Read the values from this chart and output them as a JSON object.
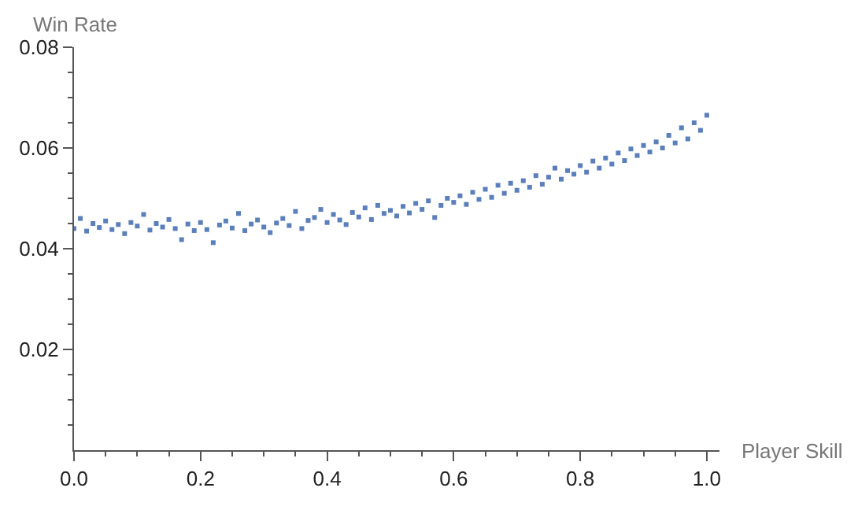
{
  "chart_data": {
    "type": "scatter",
    "xlabel": "Player Skill",
    "ylabel": "Win Rate",
    "marker": "square",
    "xlim": [
      0,
      1.02
    ],
    "ylim": [
      0,
      0.08
    ],
    "xticks": [
      {
        "value": 0,
        "label": "0.0"
      },
      {
        "value": 0.05,
        "label": null
      },
      {
        "value": 0.1,
        "label": null
      },
      {
        "value": 0.15,
        "label": null
      },
      {
        "value": 0.2,
        "label": "0.2"
      },
      {
        "value": 0.25,
        "label": null
      },
      {
        "value": 0.3,
        "label": null
      },
      {
        "value": 0.35,
        "label": null
      },
      {
        "value": 0.4,
        "label": "0.4"
      },
      {
        "value": 0.45,
        "label": null
      },
      {
        "value": 0.5,
        "label": null
      },
      {
        "value": 0.55,
        "label": null
      },
      {
        "value": 0.6,
        "label": "0.6"
      },
      {
        "value": 0.65,
        "label": null
      },
      {
        "value": 0.7,
        "label": null
      },
      {
        "value": 0.75,
        "label": null
      },
      {
        "value": 0.8,
        "label": "0.8"
      },
      {
        "value": 0.85,
        "label": null
      },
      {
        "value": 0.9,
        "label": null
      },
      {
        "value": 0.95,
        "label": null
      },
      {
        "value": 1.0,
        "label": "1.0"
      }
    ],
    "yticks": [
      {
        "value": 0.005,
        "label": null
      },
      {
        "value": 0.01,
        "label": null
      },
      {
        "value": 0.015,
        "label": null
      },
      0.02,
      {
        "value": 0.025,
        "label": null
      },
      {
        "value": 0.03,
        "label": null
      },
      {
        "value": 0.035,
        "label": null
      },
      0.04,
      {
        "value": 0.045,
        "label": null
      },
      {
        "value": 0.05,
        "label": null
      },
      {
        "value": 0.055,
        "label": null
      },
      0.06,
      {
        "value": 0.065,
        "label": null
      },
      {
        "value": 0.07,
        "label": null
      },
      {
        "value": 0.075,
        "label": null
      },
      0.08
    ],
    "x": [
      0.0,
      0.01,
      0.02,
      0.03,
      0.04,
      0.05,
      0.06,
      0.07,
      0.08,
      0.09,
      0.1,
      0.11,
      0.12,
      0.13,
      0.14,
      0.15,
      0.16,
      0.17,
      0.18,
      0.19,
      0.2,
      0.21,
      0.22,
      0.23,
      0.24,
      0.25,
      0.26,
      0.27,
      0.28,
      0.29,
      0.3,
      0.31,
      0.32,
      0.33,
      0.34,
      0.35,
      0.36,
      0.37,
      0.38,
      0.39,
      0.4,
      0.41,
      0.42,
      0.43,
      0.44,
      0.45,
      0.46,
      0.47,
      0.48,
      0.49,
      0.5,
      0.51,
      0.52,
      0.53,
      0.54,
      0.55,
      0.56,
      0.57,
      0.58,
      0.59,
      0.6,
      0.61,
      0.62,
      0.63,
      0.64,
      0.65,
      0.66,
      0.67,
      0.68,
      0.69,
      0.7,
      0.71,
      0.72,
      0.73,
      0.74,
      0.75,
      0.76,
      0.77,
      0.78,
      0.79,
      0.8,
      0.81,
      0.82,
      0.83,
      0.84,
      0.85,
      0.86,
      0.87,
      0.88,
      0.89,
      0.9,
      0.91,
      0.92,
      0.93,
      0.94,
      0.95,
      0.96,
      0.97,
      0.98,
      0.99,
      1.0
    ],
    "series": [
      {
        "color": "#5b7fba",
        "values": [
          0.044,
          0.046,
          0.0435,
          0.045,
          0.0442,
          0.0455,
          0.0438,
          0.0448,
          0.043,
          0.0452,
          0.0445,
          0.0468,
          0.0437,
          0.045,
          0.0443,
          0.0458,
          0.044,
          0.0418,
          0.0449,
          0.0436,
          0.0452,
          0.0438,
          0.0412,
          0.0447,
          0.0455,
          0.0441,
          0.047,
          0.0436,
          0.0449,
          0.0457,
          0.0443,
          0.0432,
          0.0451,
          0.046,
          0.0446,
          0.0474,
          0.044,
          0.0456,
          0.0462,
          0.0478,
          0.0452,
          0.0468,
          0.0457,
          0.0448,
          0.0472,
          0.0463,
          0.0481,
          0.0458,
          0.0486,
          0.047,
          0.0476,
          0.0465,
          0.0484,
          0.0471,
          0.049,
          0.0478,
          0.0495,
          0.0462,
          0.0486,
          0.05,
          0.0492,
          0.0505,
          0.0488,
          0.0512,
          0.0498,
          0.0518,
          0.0502,
          0.0526,
          0.051,
          0.053,
          0.0516,
          0.0535,
          0.0522,
          0.0545,
          0.0528,
          0.0542,
          0.056,
          0.0538,
          0.0555,
          0.0548,
          0.0565,
          0.0552,
          0.0574,
          0.056,
          0.058,
          0.0568,
          0.059,
          0.0575,
          0.0598,
          0.0585,
          0.0605,
          0.0592,
          0.0612,
          0.06,
          0.0625,
          0.061,
          0.064,
          0.0618,
          0.065,
          0.0635,
          0.0665
        ]
      }
    ]
  }
}
